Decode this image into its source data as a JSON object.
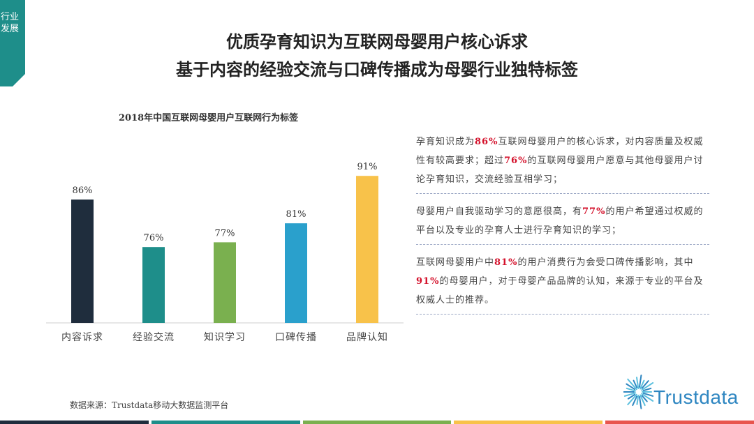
{
  "tag": {
    "label": "行业发展",
    "color": "#1e8e8a"
  },
  "title_line1": "优质孕育知识为互联网母婴用户核心诉求",
  "title_line2": "基于内容的经验交流与口碑传播成为母婴行业独特标签",
  "chart_data": {
    "type": "bar",
    "title": "2018年中国互联网母婴用户互联网行为标签",
    "categories": [
      "内容诉求",
      "经验交流",
      "知识学习",
      "口碑传播",
      "品牌认知"
    ],
    "values": [
      86,
      76,
      77,
      81,
      91
    ],
    "value_labels": [
      "86%",
      "76%",
      "77%",
      "81%",
      "91%"
    ],
    "colors": [
      "#1f2d3d",
      "#1e8e8a",
      "#7ab04f",
      "#2aa0cc",
      "#f8c24a"
    ],
    "ylim": [
      60,
      95
    ],
    "grid": false
  },
  "paragraphs": [
    [
      {
        "t": "孕育知识成为",
        "h": false
      },
      {
        "t": "86%",
        "h": true
      },
      {
        "t": "互联网母婴用户的核心诉求，对内容质量及权威性有较高要求；超过",
        "h": false
      },
      {
        "t": "76%",
        "h": true
      },
      {
        "t": "的互联网母婴用户愿意与其他母婴用户讨论孕育知识，交流经验互相学习；",
        "h": false
      }
    ],
    [
      {
        "t": "母婴用户自我驱动学习的意愿很高，有",
        "h": false
      },
      {
        "t": "77%",
        "h": true
      },
      {
        "t": "的用户希望通过权威的平台以及专业的孕育人士进行孕育知识的学习；",
        "h": false
      }
    ],
    [
      {
        "t": "互联网母婴用户中",
        "h": false
      },
      {
        "t": "81%",
        "h": true
      },
      {
        "t": "的用户消费行为会受口碑传播影响，其中",
        "h": false
      },
      {
        "t": "91%",
        "h": true
      },
      {
        "t": "的母婴用户，对于母婴产品品牌的认知，来源于专业的平台及权威人士的推荐。",
        "h": false
      }
    ]
  ],
  "source": "数据来源：Trustdata移动大数据监测平台",
  "logo_text": "Trustdata",
  "logo_color": "#2e86c1",
  "bottom_bar_colors": [
    "#1f2d3d",
    "#1e8e8a",
    "#7ab04f",
    "#f8c24a",
    "#e8554e"
  ]
}
